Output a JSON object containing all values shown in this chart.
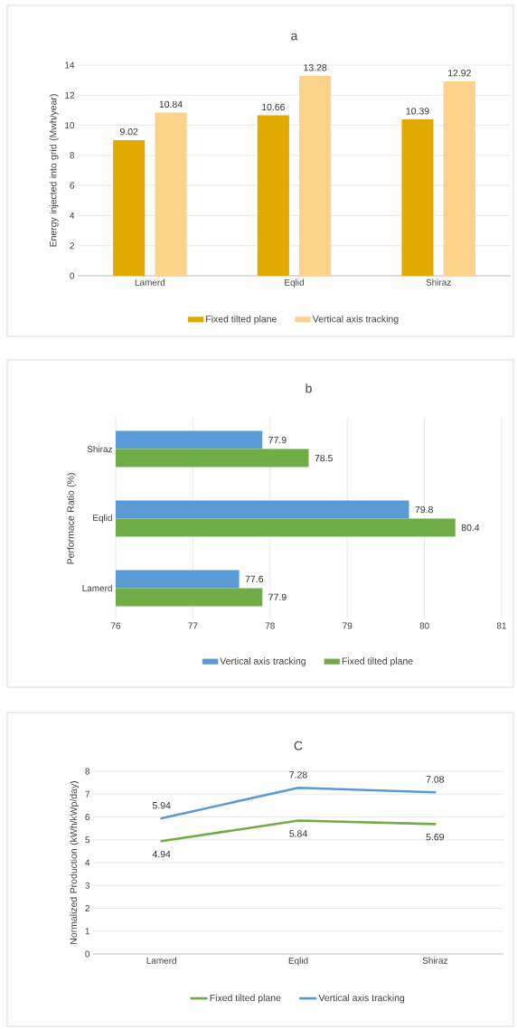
{
  "chart_data": [
    {
      "type": "bar",
      "title": "a",
      "ylabel": "Energy injected into grid (Mwh/year)",
      "categories": [
        "Lamerd",
        "Eqlid",
        "Shiraz"
      ],
      "series": [
        {
          "name": "Fixed tilted plane",
          "color": "#e2aa00",
          "values": [
            9.02,
            10.66,
            10.39
          ]
        },
        {
          "name": "Vertical axis tracking",
          "color": "#fdd28a",
          "values": [
            10.84,
            13.28,
            12.92
          ]
        }
      ],
      "ylim": [
        0,
        14
      ],
      "yticks": [
        0,
        2,
        4,
        6,
        8,
        10,
        12,
        14
      ],
      "grid": "y",
      "legend": "bottom",
      "data_labels": true
    },
    {
      "type": "bar",
      "orientation": "horizontal",
      "title": "b",
      "ylabel": "Performace Ratio (%)",
      "categories": [
        "Shiraz",
        "Eqlid",
        "Lamerd"
      ],
      "series": [
        {
          "name": "Vertical axis tracking",
          "color": "#5b9bd5",
          "values": [
            77.9,
            79.8,
            77.6
          ]
        },
        {
          "name": "Fixed tilted plane",
          "color": "#70ad47",
          "values": [
            78.5,
            80.4,
            77.9
          ]
        }
      ],
      "xlim": [
        76,
        81
      ],
      "xticks": [
        76,
        77,
        78,
        79,
        80,
        81
      ],
      "grid": "x",
      "legend": "bottom",
      "data_labels": true
    },
    {
      "type": "line",
      "title": "C",
      "ylabel": "Normalized Production (kWh/kWp/day)",
      "categories": [
        "Lamerd",
        "Eqlid",
        "Shiraz"
      ],
      "series": [
        {
          "name": "Fixed tilted plane",
          "color": "#70ad47",
          "values": [
            4.94,
            5.84,
            5.69
          ]
        },
        {
          "name": "Vertical axis tracking",
          "color": "#5b9bd5",
          "values": [
            5.94,
            7.28,
            7.08
          ]
        }
      ],
      "ylim": [
        0,
        8
      ],
      "yticks": [
        0,
        1,
        2,
        3,
        4,
        5,
        6,
        7,
        8
      ],
      "grid": "y",
      "legend": "bottom",
      "marker": "none",
      "line_style": "solid",
      "data_labels": true
    }
  ]
}
